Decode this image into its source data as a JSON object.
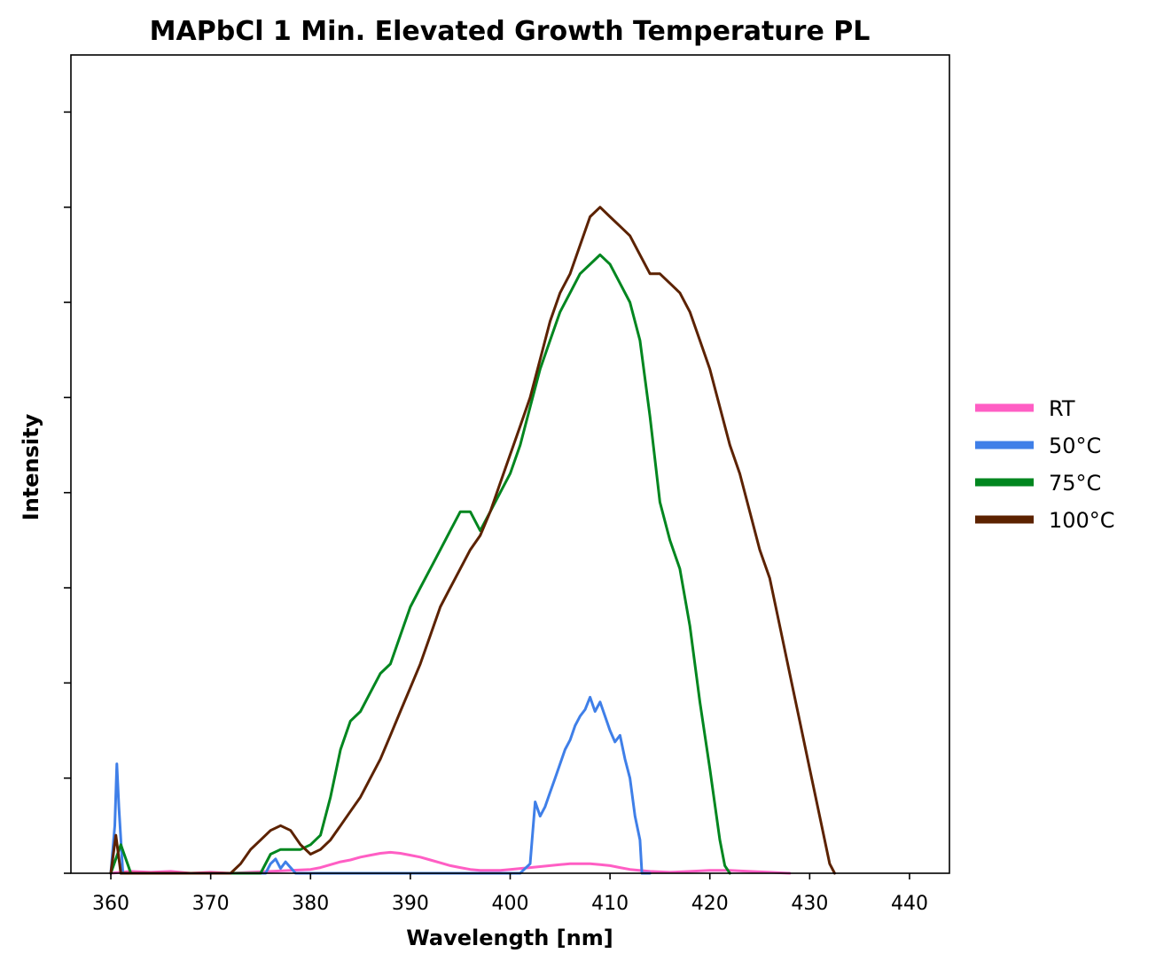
{
  "chart_data": {
    "type": "line",
    "title": "MAPbCl 1 Min. Elevated Growth Temperature PL",
    "xlabel": "Wavelength [nm]",
    "ylabel": "Intensity",
    "xlim": [
      356,
      444
    ],
    "ylim": [
      0,
      8.6
    ],
    "x_ticks": [
      360,
      370,
      380,
      390,
      400,
      410,
      420,
      430,
      440
    ],
    "x_tick_labels": [
      "360",
      "370",
      "380",
      "390",
      "400",
      "410",
      "420",
      "430",
      "440"
    ],
    "y_ticks": [
      0,
      1,
      2,
      3,
      4,
      5,
      6,
      7,
      8
    ],
    "y_tick_labels_visible": false,
    "legend_position": "right",
    "grid": false,
    "series": [
      {
        "name": "RT",
        "color": "#ff5ec4",
        "x": [
          360,
          362,
          364,
          366,
          368,
          370,
          372,
          374,
          376,
          378,
          380,
          381,
          382,
          383,
          384,
          385,
          386,
          387,
          388,
          389,
          390,
          391,
          392,
          393,
          394,
          395,
          396,
          397,
          398,
          399,
          400,
          401,
          402,
          403,
          404,
          405,
          406,
          407,
          408,
          409,
          410,
          411,
          412,
          414,
          416,
          418,
          420,
          422,
          424,
          426,
          428
        ],
        "y": [
          0.0,
          0.02,
          0.01,
          0.02,
          0.0,
          0.01,
          0.0,
          0.01,
          0.02,
          0.03,
          0.04,
          0.06,
          0.09,
          0.12,
          0.14,
          0.17,
          0.19,
          0.21,
          0.22,
          0.21,
          0.19,
          0.17,
          0.14,
          0.11,
          0.08,
          0.06,
          0.04,
          0.03,
          0.03,
          0.03,
          0.04,
          0.05,
          0.06,
          0.07,
          0.08,
          0.09,
          0.1,
          0.1,
          0.1,
          0.09,
          0.08,
          0.06,
          0.04,
          0.02,
          0.01,
          0.02,
          0.03,
          0.03,
          0.02,
          0.01,
          0.0
        ]
      },
      {
        "name": "50°C",
        "color": "#3f7fe8",
        "x": [
          360,
          360.4,
          360.6,
          360.8,
          361.2,
          362,
          375.5,
          376,
          376.5,
          377,
          377.5,
          378,
          378.5,
          401,
          401.5,
          402,
          402.5,
          403,
          403.5,
          404,
          404.5,
          405,
          405.5,
          406,
          406.5,
          407,
          407.5,
          408,
          408.5,
          409,
          409.5,
          410,
          410.5,
          411,
          411.5,
          412,
          412.5,
          413,
          413.2,
          414
        ],
        "y": [
          0.0,
          0.5,
          1.15,
          0.7,
          0.0,
          0.0,
          0.0,
          0.1,
          0.15,
          0.05,
          0.12,
          0.06,
          0.0,
          0.0,
          0.05,
          0.1,
          0.75,
          0.6,
          0.7,
          0.85,
          1.0,
          1.15,
          1.3,
          1.4,
          1.55,
          1.65,
          1.72,
          1.85,
          1.7,
          1.8,
          1.65,
          1.5,
          1.38,
          1.45,
          1.2,
          1.0,
          0.6,
          0.35,
          0.0,
          0.0
        ]
      },
      {
        "name": "75°C",
        "color": "#00861f",
        "x": [
          360,
          361,
          362,
          370,
          375,
          376,
          377,
          378,
          379,
          380,
          381,
          382,
          383,
          384,
          385,
          386,
          387,
          388,
          389,
          390,
          391,
          392,
          393,
          394,
          395,
          396,
          397,
          398,
          399,
          400,
          401,
          402,
          403,
          404,
          405,
          406,
          407,
          408,
          409,
          410,
          411,
          412,
          413,
          414,
          415,
          416,
          417,
          418,
          419,
          420,
          421,
          421.5,
          422
        ],
        "y": [
          0.0,
          0.3,
          0.0,
          0.0,
          0.0,
          0.2,
          0.25,
          0.25,
          0.25,
          0.3,
          0.4,
          0.8,
          1.3,
          1.6,
          1.7,
          1.9,
          2.1,
          2.2,
          2.5,
          2.8,
          3.0,
          3.2,
          3.4,
          3.6,
          3.8,
          3.8,
          3.6,
          3.8,
          4.0,
          4.2,
          4.5,
          4.9,
          5.3,
          5.6,
          5.9,
          6.1,
          6.3,
          6.4,
          6.5,
          6.4,
          6.2,
          6.0,
          5.6,
          4.8,
          3.9,
          3.5,
          3.2,
          2.6,
          1.8,
          1.1,
          0.35,
          0.08,
          0.0
        ]
      },
      {
        "name": "100°C",
        "color": "#5c2200",
        "x": [
          360,
          360.5,
          361,
          362,
          372,
          373,
          374,
          375,
          376,
          377,
          378,
          379,
          380,
          381,
          382,
          383,
          384,
          385,
          386,
          387,
          388,
          389,
          390,
          391,
          392,
          393,
          394,
          395,
          396,
          397,
          398,
          399,
          400,
          401,
          402,
          403,
          404,
          405,
          406,
          407,
          408,
          409,
          410,
          411,
          412,
          413,
          414,
          415,
          416,
          417,
          418,
          419,
          420,
          421,
          422,
          423,
          424,
          425,
          426,
          427,
          428,
          429,
          430,
          431,
          432,
          432.5
        ],
        "y": [
          0.0,
          0.4,
          0.0,
          0.0,
          0.0,
          0.1,
          0.25,
          0.35,
          0.45,
          0.5,
          0.45,
          0.3,
          0.2,
          0.25,
          0.35,
          0.5,
          0.65,
          0.8,
          1.0,
          1.2,
          1.45,
          1.7,
          1.95,
          2.2,
          2.5,
          2.8,
          3.0,
          3.2,
          3.4,
          3.55,
          3.8,
          4.1,
          4.4,
          4.7,
          5.0,
          5.4,
          5.8,
          6.1,
          6.3,
          6.6,
          6.9,
          7.0,
          6.9,
          6.8,
          6.7,
          6.5,
          6.3,
          6.3,
          6.2,
          6.1,
          5.9,
          5.6,
          5.3,
          4.9,
          4.5,
          4.2,
          3.8,
          3.4,
          3.1,
          2.6,
          2.1,
          1.6,
          1.1,
          0.6,
          0.1,
          0.0
        ]
      }
    ]
  }
}
